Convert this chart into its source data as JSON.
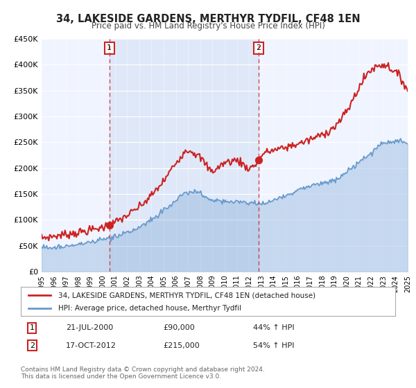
{
  "title": "34, LAKESIDE GARDENS, MERTHYR TYDFIL, CF48 1EN",
  "subtitle": "Price paid vs. HM Land Registry's House Price Index (HPI)",
  "title_fontsize": 12,
  "subtitle_fontsize": 10,
  "hpi_color": "#6699cc",
  "price_color": "#cc2222",
  "sale1_date_num": 2000.55,
  "sale1_price": 90000,
  "sale1_label": "1",
  "sale1_date_str": "21-JUL-2000",
  "sale1_pct": "44% ↑ HPI",
  "sale2_date_num": 2012.79,
  "sale2_price": 215000,
  "sale2_label": "2",
  "sale2_date_str": "17-OCT-2012",
  "sale2_pct": "54% ↑ HPI",
  "ylim": [
    0,
    450000
  ],
  "xlim": [
    1995,
    2025
  ],
  "yticks": [
    0,
    50000,
    100000,
    150000,
    200000,
    250000,
    300000,
    350000,
    400000,
    450000
  ],
  "ytick_labels": [
    "£0",
    "£50K",
    "£100K",
    "£150K",
    "£200K",
    "£250K",
    "£300K",
    "£350K",
    "£400K",
    "£450K"
  ],
  "legend_line1": "34, LAKESIDE GARDENS, MERTHYR TYDFIL, CF48 1EN (detached house)",
  "legend_line2": "HPI: Average price, detached house, Merthyr Tydfil",
  "footer1": "Contains HM Land Registry data © Crown copyright and database right 2024.",
  "footer2": "This data is licensed under the Open Government Licence v3.0.",
  "bg_color": "#f0f4ff",
  "plot_bg": "#ffffff"
}
